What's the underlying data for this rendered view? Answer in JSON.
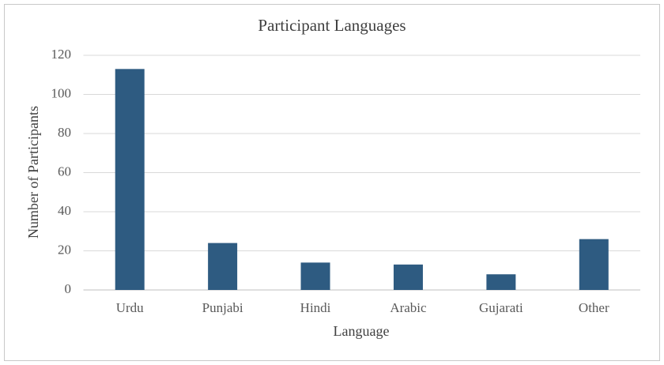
{
  "chart_data": {
    "type": "bar",
    "title": "Participant Languages",
    "x_label": "Language",
    "y_label": "Number of Participants",
    "categories": [
      "Urdu",
      "Punjabi",
      "Hindi",
      "Arabic",
      "Gujarati",
      "Other"
    ],
    "values": [
      113,
      24,
      14,
      13,
      8,
      26
    ],
    "color": "#2e5b81",
    "ylim": [
      0,
      120
    ],
    "yticks": [
      0,
      20,
      40,
      60,
      80,
      100,
      120
    ],
    "grid": true
  }
}
